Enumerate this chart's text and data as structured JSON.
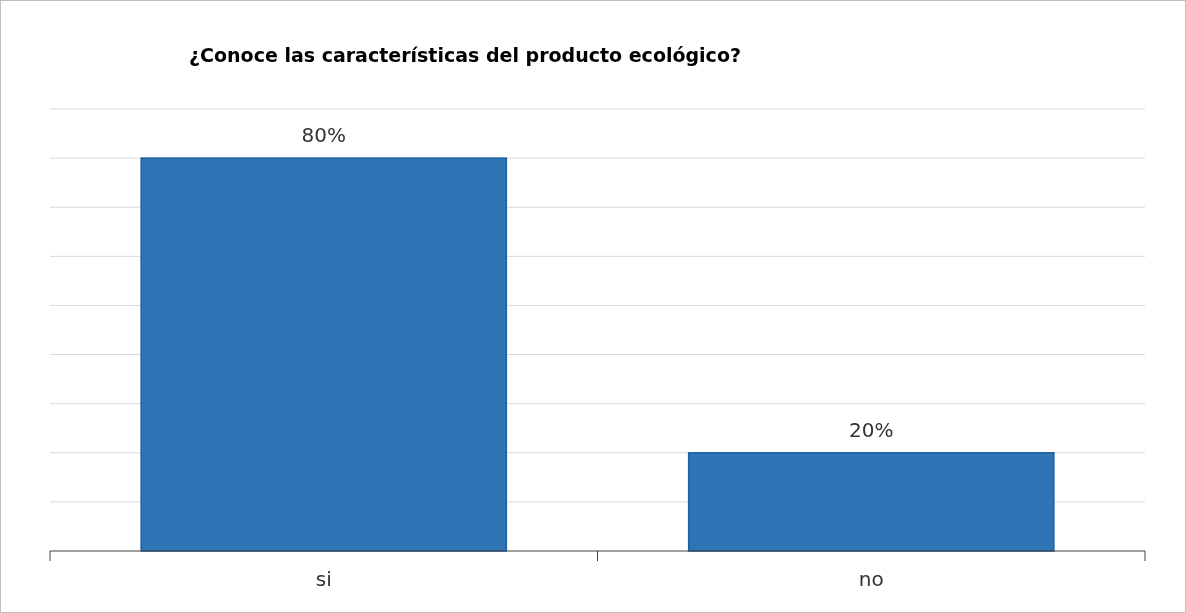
{
  "chart_data": {
    "type": "bar",
    "title": "¿Conoce las características del producto ecológico?",
    "categories": [
      "si",
      "no"
    ],
    "values": [
      80,
      20
    ],
    "color": "#2e75b6",
    "ylim": [
      0,
      90
    ],
    "yticks": [
      {
        "value": 0,
        "label": null
      },
      {
        "value": 10,
        "label": null
      },
      {
        "value": 20,
        "label": null
      },
      {
        "value": 30,
        "label": null
      },
      {
        "value": 40,
        "label": null
      },
      {
        "value": 50,
        "label": null
      },
      {
        "value": 60,
        "label": null
      },
      {
        "value": 70,
        "label": null
      },
      {
        "value": 80,
        "label": null
      },
      {
        "value": 90,
        "label": null
      }
    ],
    "value_labels": [
      "80%",
      "20%"
    ],
    "grid": "y",
    "tick_labels": "x"
  }
}
